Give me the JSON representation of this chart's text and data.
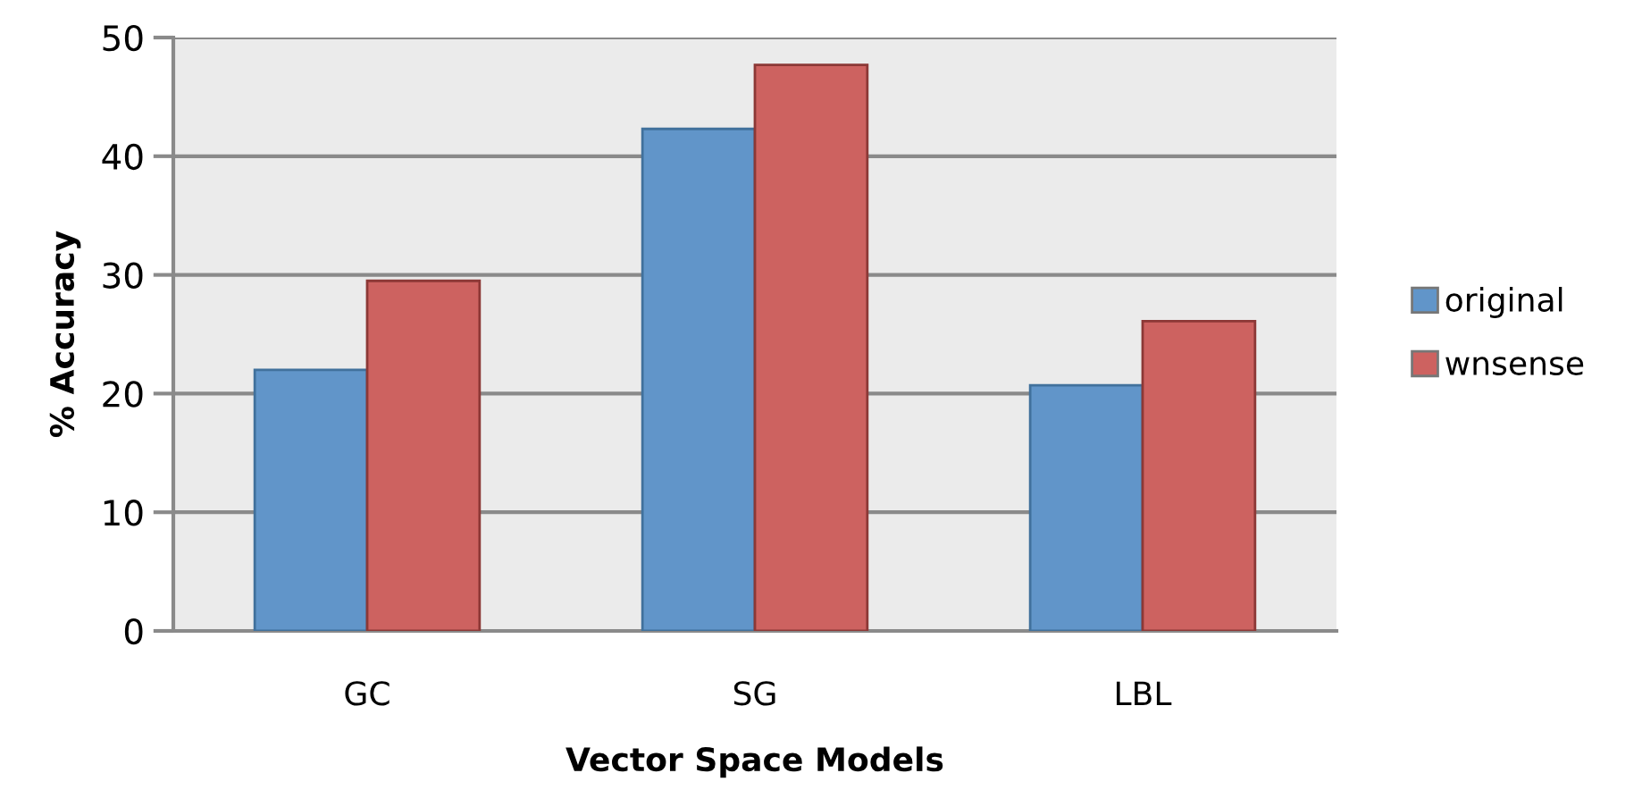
{
  "chart_data": {
    "type": "bar",
    "xlabel": "Vector Space Models",
    "ylabel": "% Accuracy",
    "categories": [
      "GC",
      "SG",
      "LBL"
    ],
    "series": [
      {
        "name": "original",
        "color": "#6195c9",
        "values": [
          22.0,
          42.3,
          20.7
        ]
      },
      {
        "name": "wnsense",
        "color": "#cd6260",
        "values": [
          29.5,
          47.7,
          26.1
        ]
      }
    ],
    "ylim": [
      0,
      50
    ],
    "yticks": [
      0,
      10,
      20,
      30,
      40,
      50
    ],
    "grid": "y",
    "legend": "right"
  }
}
